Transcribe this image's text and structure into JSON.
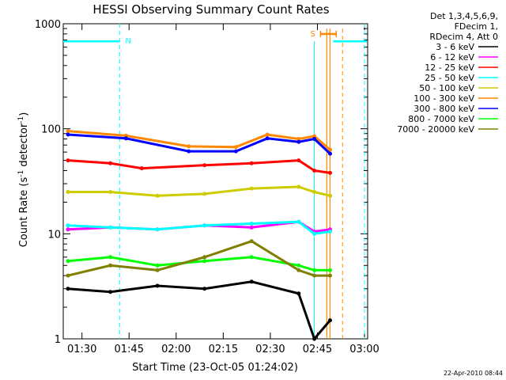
{
  "chart_data": {
    "type": "line",
    "title": "HESSI Observing Summary Count Rates",
    "xlabel": "Start Time (23-Oct-05 01:24:02)",
    "ylabel_main": "Count Rate (s",
    "ylabel_sup1": "-1",
    "ylabel_mid": " detector",
    "ylabel_sup2": "-1",
    "ylabel_end": ")",
    "y_scale": "log",
    "ylim": [
      1,
      1000
    ],
    "xlim": [
      "01:24:02",
      "03:01:00"
    ],
    "x_ticks": [
      "01:30",
      "01:45",
      "02:00",
      "02:15",
      "02:30",
      "02:45",
      "03:00"
    ],
    "y_ticks": [
      "1",
      "10",
      "100",
      "1000"
    ],
    "legend_header": [
      "Det 1,3,4,5,6,9,",
      "FDecim 1,",
      "RDecim 4, Att 0"
    ],
    "legend_position": "right",
    "annotations": {
      "night_label": "N",
      "saa_label": "S",
      "footer_stamp": "22-Apr-2010 08:44"
    },
    "markers": {
      "night_start": "01:24",
      "night_end": "01:42",
      "day_resume": "02:50",
      "saa_start": "02:46",
      "saa_end": "02:51",
      "saa_boundaries": [
        "02:45",
        "02:53",
        "03:00"
      ],
      "flare_lines": [
        "02:48",
        "02:49"
      ]
    },
    "series": [
      {
        "name": "3 - 6 keV",
        "color": "#000000",
        "values": [
          [
            1.5,
            3
          ],
          [
            15,
            2.8
          ],
          [
            30,
            3.2
          ],
          [
            45,
            3
          ],
          [
            60,
            3.5
          ],
          [
            75,
            2.7
          ],
          [
            80,
            1
          ],
          [
            85,
            1.5
          ]
        ]
      },
      {
        "name": "6 - 12 keV",
        "color": "#ff00ff",
        "values": [
          [
            1.5,
            11
          ],
          [
            15,
            11.5
          ],
          [
            30,
            11
          ],
          [
            45,
            12
          ],
          [
            60,
            11.5
          ],
          [
            75,
            13
          ],
          [
            80,
            10.5
          ],
          [
            85,
            11
          ]
        ]
      },
      {
        "name": "12 - 25 keV",
        "color": "#ff0000",
        "values": [
          [
            1.5,
            50
          ],
          [
            15,
            47
          ],
          [
            25,
            42
          ],
          [
            45,
            45
          ],
          [
            60,
            47
          ],
          [
            75,
            50
          ],
          [
            80,
            40
          ],
          [
            85,
            38
          ]
        ]
      },
      {
        "name": "25 - 50 keV",
        "color": "#00ffff",
        "values": [
          [
            1.5,
            12
          ],
          [
            15,
            11.5
          ],
          [
            30,
            11
          ],
          [
            45,
            12
          ],
          [
            60,
            12.5
          ],
          [
            75,
            13
          ],
          [
            80,
            10
          ],
          [
            85,
            10.5
          ]
        ]
      },
      {
        "name": "50 - 100 keV",
        "color": "#cccc00",
        "values": [
          [
            1.5,
            25
          ],
          [
            15,
            25
          ],
          [
            30,
            23
          ],
          [
            45,
            24
          ],
          [
            60,
            27
          ],
          [
            75,
            28
          ],
          [
            80,
            25
          ],
          [
            85,
            23
          ]
        ]
      },
      {
        "name": "100 - 300 keV",
        "color": "#ff8800",
        "values": [
          [
            1.5,
            95
          ],
          [
            20,
            86
          ],
          [
            40,
            68
          ],
          [
            55,
            67
          ],
          [
            65,
            88
          ],
          [
            75,
            80
          ],
          [
            80,
            85
          ],
          [
            85,
            63
          ]
        ]
      },
      {
        "name": "300 - 800 keV",
        "color": "#0000ff",
        "values": [
          [
            1.5,
            88
          ],
          [
            20,
            81
          ],
          [
            40,
            61
          ],
          [
            55,
            61
          ],
          [
            65,
            81
          ],
          [
            75,
            75
          ],
          [
            80,
            80
          ],
          [
            85,
            58
          ]
        ]
      },
      {
        "name": "800 - 7000 keV",
        "color": "#00ff00",
        "values": [
          [
            1.5,
            5.5
          ],
          [
            15,
            6
          ],
          [
            30,
            5
          ],
          [
            45,
            5.5
          ],
          [
            60,
            6
          ],
          [
            75,
            5
          ],
          [
            80,
            4.5
          ],
          [
            85,
            4.5
          ]
        ]
      },
      {
        "name": "7000 - 20000 keV",
        "color": "#808000",
        "values": [
          [
            1.5,
            4
          ],
          [
            15,
            5
          ],
          [
            30,
            4.5
          ],
          [
            45,
            6
          ],
          [
            60,
            8.5
          ],
          [
            75,
            4.5
          ],
          [
            80,
            4
          ],
          [
            85,
            4
          ]
        ]
      }
    ]
  }
}
